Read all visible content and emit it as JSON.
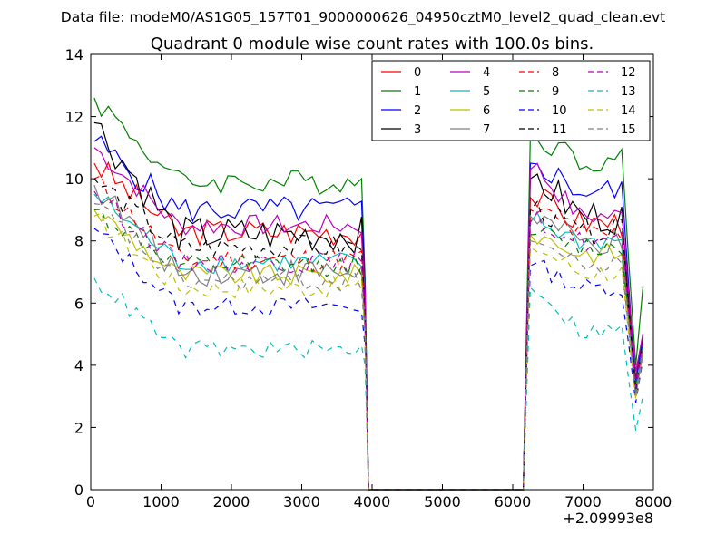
{
  "chart_data": {
    "type": "line",
    "suptitle": "Data file: modeM0/AS1G05_157T01_9000000626_04950cztM0_level2_quad_clean.evt",
    "title": "Quadrant 0 module wise count rates with 100.0s bins.",
    "xlabel": "",
    "ylabel": "",
    "x_offset_label": "+2.09993e8",
    "xlim": [
      0,
      8000
    ],
    "ylim": [
      0,
      14
    ],
    "xticks": [
      0,
      1000,
      2000,
      3000,
      4000,
      5000,
      6000,
      7000,
      8000
    ],
    "yticks": [
      0,
      2,
      4,
      6,
      8,
      10,
      12,
      14
    ],
    "grid": false,
    "legend_position": "top-right",
    "gap": [
      3950,
      6150
    ],
    "series": [
      {
        "name": "0",
        "color": "#ff0000",
        "dash": "solid",
        "level": 8.3,
        "noise": 0.45,
        "start": 10.5,
        "edge": 5.6,
        "level2": 8.6,
        "peak2": 9.4,
        "dip": 3.6,
        "last": 5.0
      },
      {
        "name": "1",
        "color": "#008000",
        "dash": "solid",
        "level": 9.9,
        "noise": 0.4,
        "start": 12.6,
        "edge": 6.8,
        "level2": 10.6,
        "peak2": 11.4,
        "dip": 4.0,
        "last": 6.5
      },
      {
        "name": "2",
        "color": "#0000ff",
        "dash": "solid",
        "level": 9.0,
        "noise": 0.45,
        "start": 11.2,
        "edge": 6.5,
        "level2": 9.6,
        "peak2": 10.5,
        "dip": 3.4,
        "last": 5.0
      },
      {
        "name": "3",
        "color": "#000000",
        "dash": "solid",
        "level": 8.2,
        "noise": 0.6,
        "start": 11.8,
        "edge": 6.0,
        "level2": 8.8,
        "peak2": 10.0,
        "dip": 3.0,
        "last": 4.8
      },
      {
        "name": "4",
        "color": "#bf00bf",
        "dash": "solid",
        "level": 8.5,
        "noise": 0.35,
        "start": 11.0,
        "edge": 6.3,
        "level2": 8.8,
        "peak2": 10.3,
        "dip": 3.8,
        "last": 5.0
      },
      {
        "name": "5",
        "color": "#00bfbf",
        "dash": "solid",
        "level": 7.3,
        "noise": 0.35,
        "start": 9.5,
        "edge": 5.4,
        "level2": 8.0,
        "peak2": 8.6,
        "dip": 3.2,
        "last": 4.6
      },
      {
        "name": "6",
        "color": "#bfbf00",
        "dash": "solid",
        "level": 6.9,
        "noise": 0.35,
        "start": 9.0,
        "edge": 5.0,
        "level2": 7.6,
        "peak2": 8.2,
        "dip": 3.0,
        "last": 4.4
      },
      {
        "name": "7",
        "color": "#808080",
        "dash": "solid",
        "level": 7.0,
        "noise": 0.45,
        "start": 9.8,
        "edge": 5.2,
        "level2": 7.9,
        "peak2": 8.8,
        "dip": 3.0,
        "last": 4.5
      },
      {
        "name": "8",
        "color": "#ff0000",
        "dash": "dashed",
        "level": 7.4,
        "noise": 0.4,
        "start": 10.0,
        "edge": 5.2,
        "level2": 8.2,
        "peak2": 9.0,
        "dip": 3.3,
        "last": 4.8
      },
      {
        "name": "9",
        "color": "#008000",
        "dash": "dashed",
        "level": 7.2,
        "noise": 0.35,
        "start": 9.0,
        "edge": 5.3,
        "level2": 7.8,
        "peak2": 8.2,
        "dip": 3.4,
        "last": 4.7
      },
      {
        "name": "10",
        "color": "#0000ff",
        "dash": "dashed",
        "level": 5.9,
        "noise": 0.3,
        "start": 8.4,
        "edge": 4.6,
        "level2": 6.5,
        "peak2": 7.2,
        "dip": 2.8,
        "last": 4.2
      },
      {
        "name": "11",
        "color": "#000000",
        "dash": "dashed",
        "level": 7.8,
        "noise": 0.4,
        "start": 10.0,
        "edge": 5.6,
        "level2": 8.3,
        "peak2": 9.0,
        "dip": 3.2,
        "last": 4.8
      },
      {
        "name": "12",
        "color": "#bf00bf",
        "dash": "dashed",
        "level": 7.3,
        "noise": 0.35,
        "start": 9.6,
        "edge": 5.4,
        "level2": 8.0,
        "peak2": 8.6,
        "dip": 3.3,
        "last": 4.7
      },
      {
        "name": "13",
        "color": "#00bfbf",
        "dash": "dashed",
        "level": 4.5,
        "noise": 0.3,
        "start": 6.8,
        "edge": 4.0,
        "level2": 5.1,
        "peak2": 6.5,
        "dip": 1.9,
        "last": 3.0
      },
      {
        "name": "14",
        "color": "#bfbf00",
        "dash": "dashed",
        "level": 6.5,
        "noise": 0.35,
        "start": 8.8,
        "edge": 4.8,
        "level2": 7.0,
        "peak2": 7.8,
        "dip": 2.9,
        "last": 4.3
      },
      {
        "name": "15",
        "color": "#808080",
        "dash": "dashed",
        "level": 6.7,
        "noise": 0.35,
        "start": 9.2,
        "edge": 5.0,
        "level2": 7.2,
        "peak2": 8.0,
        "dip": 3.0,
        "last": 4.4
      }
    ]
  }
}
